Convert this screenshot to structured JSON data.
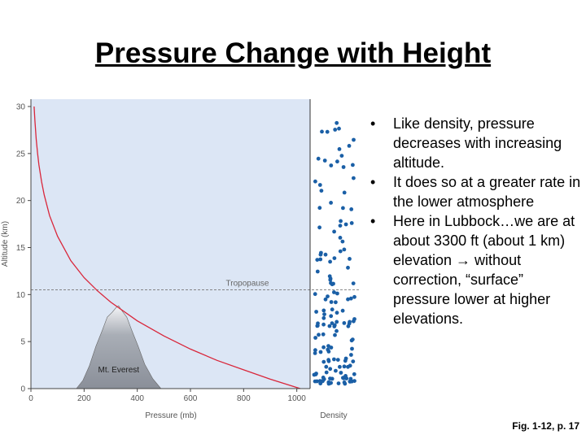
{
  "slide": {
    "title": "Pressure Change with Height",
    "caption": "Fig. 1-12, p. 17"
  },
  "bullets": [
    {
      "text": "Like density, pressure decreases with increasing altitude."
    },
    {
      "text": "It does so at a greater rate in the lower atmosphere"
    },
    {
      "text": "Here in Lubbock…we are at about 3300 ft (about 1 km) elevation → without correction, “surface” pressure lower at higher elevations."
    }
  ],
  "colors": {
    "curve": "#d9263a",
    "plot_bg": "#dce6f5",
    "density_dot": "#1a5fa6",
    "mountain": "#8a8f99"
  },
  "chart_data": {
    "type": "line",
    "title": "",
    "xlabel": "Pressure (mb)",
    "ylabel": "Altitude (km)",
    "xlim": [
      0,
      1050
    ],
    "ylim": [
      0,
      30
    ],
    "x_ticks": [
      0,
      200,
      400,
      600,
      800,
      1000
    ],
    "y_ticks": [
      0,
      5,
      10,
      15,
      20,
      25,
      30
    ],
    "series": [
      {
        "name": "Pressure",
        "x": [
          1013,
          900,
          800,
          700,
          600,
          500,
          400,
          300,
          250,
          200,
          150,
          100,
          70,
          50,
          40,
          30,
          25,
          20,
          15,
          12
        ],
        "y": [
          0,
          1.0,
          2.0,
          3.0,
          4.2,
          5.6,
          7.2,
          9.2,
          10.4,
          11.8,
          13.6,
          16.2,
          18.4,
          20.6,
          22.0,
          23.8,
          25.0,
          26.5,
          28.5,
          30.0
        ]
      }
    ],
    "annotations": [
      {
        "label": "Tropopause",
        "y": 10.5
      },
      {
        "label": "Mt. Everest",
        "x": 330,
        "y": 8.8
      }
    ],
    "density_label": "Density"
  }
}
